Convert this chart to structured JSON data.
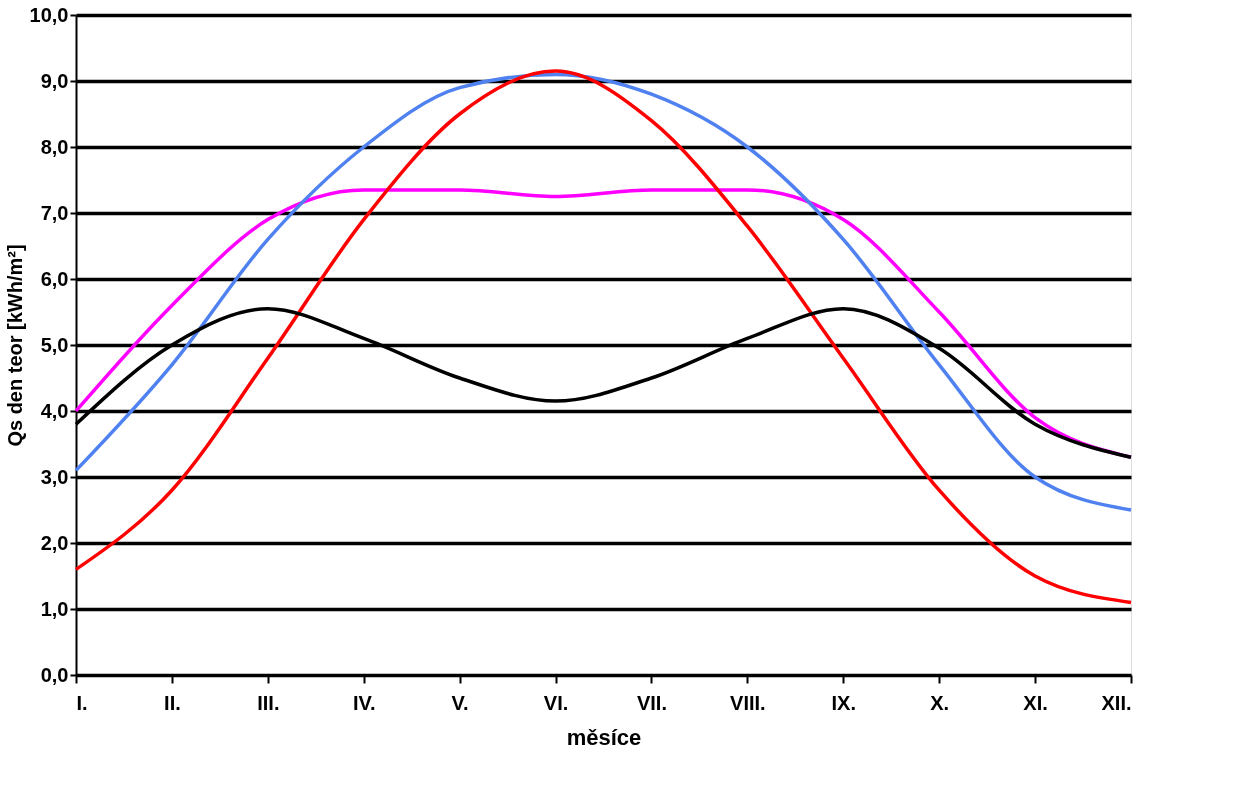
{
  "chart_data": {
    "type": "line",
    "xlabel": "měsíce",
    "ylabel": "Qs den teor [kWh/m²]",
    "categories": [
      "I.",
      "II.",
      "III.",
      "IV.",
      "V.",
      "VI.",
      "VII.",
      "VIII.",
      "IX.",
      "X.",
      "XI.",
      "XII."
    ],
    "series": [
      {
        "color": "#ff00ff",
        "values": [
          4.0,
          5.6,
          6.9,
          7.35,
          7.35,
          7.25,
          7.35,
          7.35,
          6.9,
          5.5,
          3.9,
          3.3
        ]
      },
      {
        "color": "#4f81f0",
        "values": [
          3.1,
          4.7,
          6.6,
          8.0,
          8.9,
          9.1,
          8.8,
          8.0,
          6.6,
          4.7,
          3.0,
          2.5
        ]
      },
      {
        "color": "#ff0000",
        "values": [
          1.6,
          2.8,
          4.8,
          6.9,
          8.5,
          9.15,
          8.4,
          6.8,
          4.8,
          2.8,
          1.5,
          1.1
        ]
      },
      {
        "color": "#000000",
        "values": [
          3.8,
          5.0,
          5.55,
          5.1,
          4.5,
          4.15,
          4.5,
          5.1,
          5.55,
          4.95,
          3.8,
          3.3
        ]
      }
    ],
    "ylim": [
      0,
      10
    ],
    "yticks": [
      {
        "value": 0,
        "label": "0,0"
      },
      {
        "value": 1,
        "label": "1,0"
      },
      {
        "value": 2,
        "label": "2,0"
      },
      {
        "value": 3,
        "label": "3,0"
      },
      {
        "value": 4,
        "label": "4,0"
      },
      {
        "value": 5,
        "label": "5,0"
      },
      {
        "value": 6,
        "label": "6,0"
      },
      {
        "value": 7,
        "label": "7,0"
      },
      {
        "value": 8,
        "label": "8,0"
      },
      {
        "value": 9,
        "label": "9,0"
      },
      {
        "value": 10,
        "label": "10,0"
      }
    ],
    "grid": "y",
    "legend": false,
    "marker": "none",
    "line_style": "solid"
  }
}
